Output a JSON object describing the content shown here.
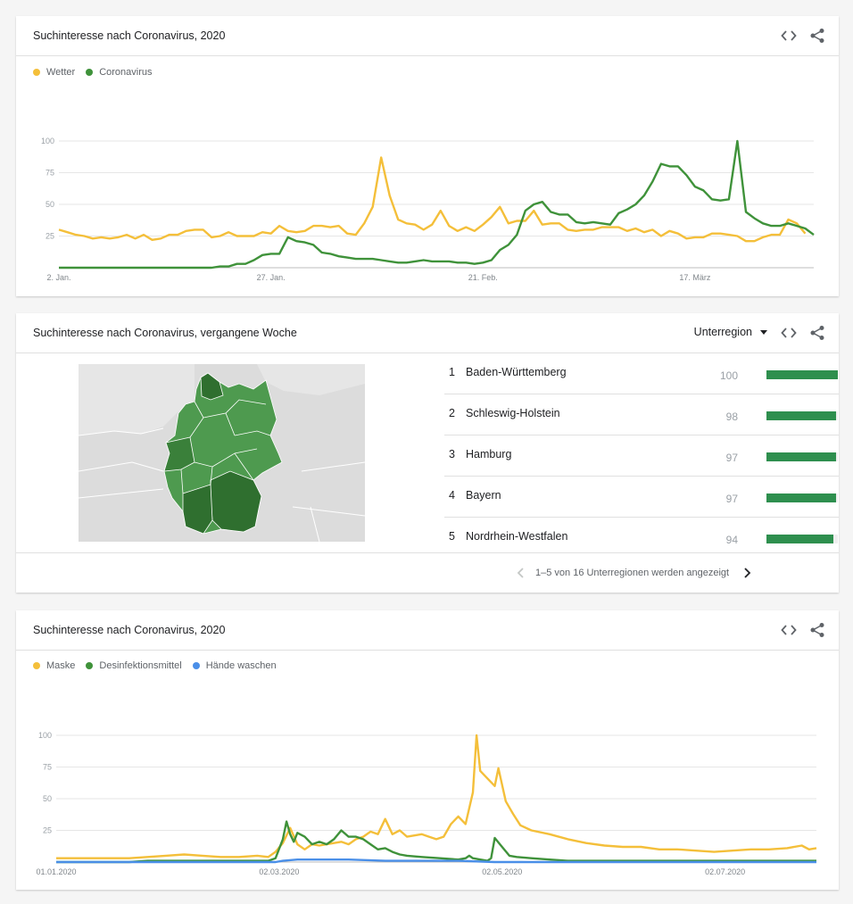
{
  "card1": {
    "title": "Suchinteresse nach Coronavirus, 2020",
    "legend": [
      {
        "label": "Wetter",
        "color": "#f4bf3a"
      },
      {
        "label": "Coronavirus",
        "color": "#3f923a"
      }
    ],
    "icons": {
      "embed": "embed-code-icon",
      "share": "share-icon"
    }
  },
  "card2": {
    "title": "Suchinteresse nach Coronavirus, vergangene Woche",
    "selector_label": "Unterregion",
    "regions": [
      {
        "rank": "1",
        "name": "Baden-Württemberg",
        "value": 100
      },
      {
        "rank": "2",
        "name": "Schleswig-Holstein",
        "value": 98
      },
      {
        "rank": "3",
        "name": "Hamburg",
        "value": 97
      },
      {
        "rank": "4",
        "name": "Bayern",
        "value": 97
      },
      {
        "rank": "5",
        "name": "Nordrhein-Westfalen",
        "value": 94
      }
    ],
    "pager_text": "1–5 von 16 Unterregionen werden angezeigt",
    "bar_color": "#2e8f4e"
  },
  "card3": {
    "title": "Suchinteresse nach Coronavirus, 2020",
    "legend": [
      {
        "label": "Maske",
        "color": "#f4bf3a"
      },
      {
        "label": "Desinfektionsmittel",
        "color": "#3f923a"
      },
      {
        "label": "Hände waschen",
        "color": "#4a8fe8"
      }
    ]
  },
  "chart_data": [
    {
      "type": "line",
      "title": "Suchinteresse nach Coronavirus, 2020",
      "x_ticks": [
        "2. Jan.",
        "27. Jan.",
        "21. Feb.",
        "17. März"
      ],
      "x_tick_index": [
        0,
        25,
        50,
        75
      ],
      "yticks": [
        25,
        50,
        75,
        100
      ],
      "ylim": [
        0,
        100
      ],
      "grid": true,
      "legend_position": "top-left",
      "series": [
        {
          "name": "Wetter",
          "color": "#f4bf3a",
          "values": [
            30,
            28,
            26,
            25,
            23,
            24,
            23,
            24,
            26,
            23,
            26,
            22,
            23,
            26,
            26,
            29,
            30,
            30,
            24,
            25,
            28,
            25,
            25,
            25,
            28,
            27,
            33,
            29,
            28,
            29,
            33,
            33,
            32,
            33,
            27,
            26,
            35,
            48,
            87,
            57,
            38,
            35,
            34,
            30,
            34,
            45,
            33,
            29,
            32,
            29,
            34,
            40,
            48,
            35,
            37,
            37,
            45,
            34,
            35,
            35,
            30,
            29,
            30,
            30,
            32,
            32,
            32,
            29,
            31,
            28,
            30,
            25,
            29,
            27,
            23,
            24,
            24,
            27,
            27,
            26,
            25,
            21,
            21,
            24,
            26,
            26,
            38,
            35,
            27
          ]
        },
        {
          "name": "Coronavirus",
          "color": "#3f923a",
          "values": [
            0,
            0,
            0,
            0,
            0,
            0,
            0,
            0,
            0,
            0,
            0,
            0,
            0,
            0,
            0,
            0,
            0,
            0,
            0,
            1,
            1,
            3,
            3,
            6,
            10,
            11,
            11,
            24,
            21,
            20,
            18,
            12,
            11,
            9,
            8,
            7,
            7,
            7,
            6,
            5,
            4,
            4,
            5,
            6,
            5,
            5,
            5,
            4,
            4,
            3,
            4,
            6,
            14,
            18,
            26,
            45,
            50,
            52,
            44,
            42,
            42,
            36,
            35,
            36,
            35,
            34,
            43,
            46,
            50,
            57,
            68,
            82,
            80,
            80,
            73,
            64,
            61,
            54,
            53,
            54,
            100,
            44,
            39,
            35,
            33,
            33,
            35,
            33,
            31,
            26
          ]
        }
      ]
    },
    {
      "type": "line",
      "title": "Suchinteresse nach Coronavirus, 2020",
      "x_ticks": [
        "01.01.2020",
        "02.03.2020",
        "02.05.2020",
        "02.07.2020"
      ],
      "x_tick_index": [
        0,
        61,
        122,
        183
      ],
      "yticks": [
        25,
        50,
        75,
        100
      ],
      "ylim": [
        0,
        100
      ],
      "grid": true,
      "legend_position": "top-left",
      "series": [
        {
          "name": "Maske",
          "color": "#f4bf3a",
          "points": [
            [
              0,
              3
            ],
            [
              20,
              3
            ],
            [
              25,
              4
            ],
            [
              30,
              5
            ],
            [
              35,
              6
            ],
            [
              40,
              5
            ],
            [
              45,
              4
            ],
            [
              50,
              4
            ],
            [
              55,
              5
            ],
            [
              58,
              4
            ],
            [
              60,
              8
            ],
            [
              62,
              15
            ],
            [
              64,
              27
            ],
            [
              66,
              14
            ],
            [
              68,
              10
            ],
            [
              70,
              14
            ],
            [
              72,
              13
            ],
            [
              74,
              14
            ],
            [
              76,
              15
            ],
            [
              78,
              16
            ],
            [
              80,
              14
            ],
            [
              82,
              18
            ],
            [
              84,
              20
            ],
            [
              86,
              24
            ],
            [
              88,
              22
            ],
            [
              90,
              34
            ],
            [
              92,
              22
            ],
            [
              94,
              25
            ],
            [
              96,
              20
            ],
            [
              98,
              21
            ],
            [
              100,
              22
            ],
            [
              102,
              20
            ],
            [
              104,
              18
            ],
            [
              106,
              20
            ],
            [
              108,
              30
            ],
            [
              110,
              36
            ],
            [
              112,
              30
            ],
            [
              114,
              55
            ],
            [
              115,
              100
            ],
            [
              116,
              72
            ],
            [
              118,
              66
            ],
            [
              120,
              60
            ],
            [
              121,
              74
            ],
            [
              123,
              48
            ],
            [
              125,
              38
            ],
            [
              127,
              29
            ],
            [
              130,
              25
            ],
            [
              135,
              22
            ],
            [
              140,
              18
            ],
            [
              145,
              15
            ],
            [
              150,
              13
            ],
            [
              155,
              12
            ],
            [
              160,
              12
            ],
            [
              165,
              10
            ],
            [
              170,
              10
            ],
            [
              175,
              9
            ],
            [
              180,
              8
            ],
            [
              185,
              9
            ],
            [
              190,
              10
            ],
            [
              195,
              10
            ],
            [
              200,
              11
            ],
            [
              204,
              13
            ],
            [
              206,
              10
            ],
            [
              208,
              11
            ]
          ]
        },
        {
          "name": "Desinfektionsmittel",
          "color": "#3f923a",
          "points": [
            [
              0,
              0
            ],
            [
              20,
              0
            ],
            [
              25,
              1
            ],
            [
              40,
              1
            ],
            [
              50,
              1
            ],
            [
              55,
              1
            ],
            [
              58,
              1
            ],
            [
              60,
              3
            ],
            [
              62,
              18
            ],
            [
              63,
              32
            ],
            [
              64,
              22
            ],
            [
              65,
              16
            ],
            [
              66,
              23
            ],
            [
              68,
              20
            ],
            [
              70,
              14
            ],
            [
              72,
              16
            ],
            [
              74,
              14
            ],
            [
              76,
              18
            ],
            [
              78,
              25
            ],
            [
              80,
              20
            ],
            [
              82,
              20
            ],
            [
              84,
              18
            ],
            [
              86,
              14
            ],
            [
              88,
              10
            ],
            [
              90,
              11
            ],
            [
              92,
              8
            ],
            [
              94,
              6
            ],
            [
              96,
              5
            ],
            [
              100,
              4
            ],
            [
              105,
              3
            ],
            [
              110,
              2
            ],
            [
              112,
              3
            ],
            [
              113,
              5
            ],
            [
              114,
              3
            ],
            [
              116,
              2
            ],
            [
              118,
              1
            ],
            [
              119,
              3
            ],
            [
              120,
              19
            ],
            [
              122,
              12
            ],
            [
              124,
              5
            ],
            [
              126,
              4
            ],
            [
              130,
              3
            ],
            [
              135,
              2
            ],
            [
              140,
              1
            ],
            [
              150,
              1
            ],
            [
              160,
              1
            ],
            [
              170,
              1
            ],
            [
              180,
              1
            ],
            [
              190,
              1
            ],
            [
              200,
              1
            ],
            [
              208,
              1
            ]
          ]
        },
        {
          "name": "Hände waschen",
          "color": "#4a8fe8",
          "points": [
            [
              0,
              0
            ],
            [
              60,
              0
            ],
            [
              62,
              1
            ],
            [
              66,
              2
            ],
            [
              72,
              2
            ],
            [
              80,
              2
            ],
            [
              90,
              1
            ],
            [
              100,
              1
            ],
            [
              110,
              1
            ],
            [
              120,
              0
            ],
            [
              208,
              0
            ]
          ]
        }
      ]
    }
  ]
}
